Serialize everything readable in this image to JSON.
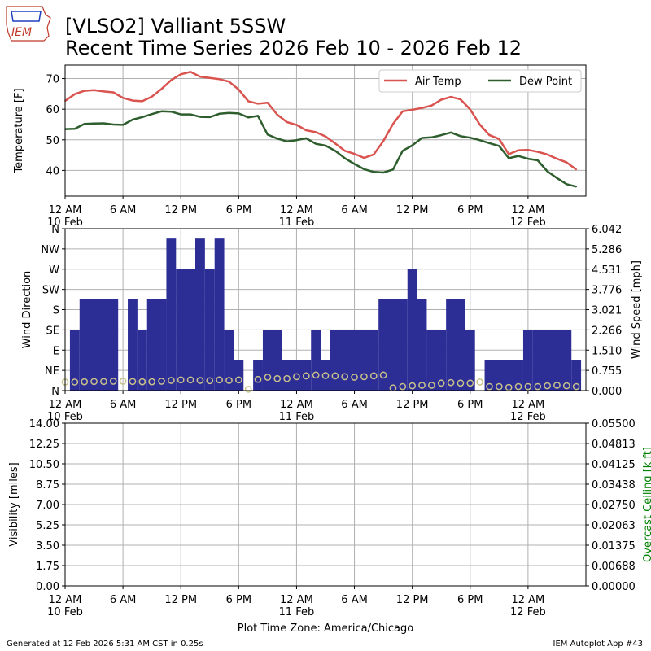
{
  "header": {
    "logo_text": "IEM",
    "title_line1": "[VLSO2] Valliant 5SSW",
    "title_line2": "Recent Time Series 2026 Feb 10 - 2026 Feb 12"
  },
  "footer": {
    "generated": "Generated at 12 Feb 2026 5:31 AM CST in 0.25s",
    "app": "IEM Autoplot App #43",
    "timezone_label": "Plot Time Zone: America/Chicago"
  },
  "colors": {
    "air_temp": "#d9534f",
    "dew_point": "#2e5e2e",
    "wind_bar": "#2d2d96",
    "wind_marker": "#c8c28a",
    "ceiling_axis": "#008000",
    "grid": "#b0b0b0"
  },
  "time_axis": {
    "start_hour": 0,
    "end_hour": 54,
    "ticks": [
      {
        "hour": 0,
        "label": "12 AM",
        "sub": "10 Feb"
      },
      {
        "hour": 6,
        "label": "6 AM",
        "sub": ""
      },
      {
        "hour": 12,
        "label": "12 PM",
        "sub": ""
      },
      {
        "hour": 18,
        "label": "6 PM",
        "sub": ""
      },
      {
        "hour": 24,
        "label": "12 AM",
        "sub": "11 Feb"
      },
      {
        "hour": 30,
        "label": "6 AM",
        "sub": ""
      },
      {
        "hour": 36,
        "label": "12 PM",
        "sub": ""
      },
      {
        "hour": 42,
        "label": "6 PM",
        "sub": ""
      },
      {
        "hour": 48,
        "label": "12 AM",
        "sub": "12 Feb"
      }
    ]
  },
  "chart_data": [
    {
      "type": "line",
      "ylabel": "Temperature [F]",
      "ylim": [
        31.6,
        74.4
      ],
      "yticks": [
        40,
        50,
        60,
        70
      ],
      "grid": true,
      "legend_position": "top-right",
      "x": [
        0,
        1,
        2,
        3,
        4,
        5,
        6,
        7,
        8,
        9,
        10,
        11,
        12,
        13,
        14,
        15,
        16,
        17,
        18,
        19,
        20,
        21,
        22,
        23,
        24,
        25,
        26,
        27,
        28,
        29,
        30,
        31,
        32,
        33,
        34,
        35,
        36,
        37,
        38,
        39,
        40,
        41,
        42,
        43,
        44,
        45,
        46,
        47,
        48,
        49,
        50,
        51,
        52,
        53
      ],
      "series": [
        {
          "name": "Air Temp",
          "color_key": "air_temp",
          "values": [
            62.7,
            64.9,
            66.0,
            66.2,
            65.8,
            65.5,
            63.7,
            62.8,
            62.6,
            64.1,
            66.6,
            69.5,
            71.4,
            72.2,
            70.6,
            70.2,
            69.8,
            69.0,
            66.4,
            62.6,
            61.8,
            62.1,
            58.2,
            55.8,
            54.9,
            53.1,
            52.5,
            51.1,
            48.8,
            46.4,
            45.4,
            44.1,
            45.2,
            49.6,
            55.2,
            59.3,
            59.8,
            60.4,
            61.2,
            63.1,
            64.0,
            63.2,
            59.9,
            55.0,
            51.5,
            50.3,
            45.3,
            46.6,
            46.7,
            46.1,
            45.2,
            43.8,
            42.6,
            40.3
          ]
        },
        {
          "name": "Dew Point",
          "color_key": "dew_point",
          "values": [
            53.5,
            53.6,
            55.2,
            55.3,
            55.4,
            55.0,
            54.9,
            56.6,
            57.4,
            58.4,
            59.3,
            59.2,
            58.3,
            58.3,
            57.5,
            57.4,
            58.5,
            58.8,
            58.6,
            57.3,
            57.8,
            51.7,
            50.4,
            49.5,
            49.9,
            50.5,
            48.7,
            48.1,
            46.4,
            44.0,
            42.1,
            40.4,
            39.5,
            39.3,
            40.3,
            46.4,
            48.2,
            50.6,
            50.8,
            51.5,
            52.4,
            51.2,
            50.7,
            49.9,
            48.9,
            48.0,
            44.0,
            44.7,
            43.8,
            43.3,
            39.7,
            37.5,
            35.5,
            34.7
          ]
        }
      ]
    },
    {
      "type": "bar",
      "ylabel": "Wind Direction",
      "y2label": "Wind Speed [mph]",
      "ylim": [
        0,
        360
      ],
      "direction_ticks": [
        {
          "deg": 0,
          "label": "N"
        },
        {
          "deg": 45,
          "label": "NE"
        },
        {
          "deg": 90,
          "label": "E"
        },
        {
          "deg": 135,
          "label": "SE"
        },
        {
          "deg": 180,
          "label": "S"
        },
        {
          "deg": 225,
          "label": "SW"
        },
        {
          "deg": 270,
          "label": "W"
        },
        {
          "deg": 315,
          "label": "NW"
        },
        {
          "deg": 360,
          "label": "N"
        }
      ],
      "speed_ticks": [
        "0.000",
        "0.755",
        "1.510",
        "2.266",
        "3.021",
        "3.776",
        "4.531",
        "5.286",
        "6.042"
      ],
      "speed_max": 6.042,
      "grid": true,
      "direction_bars": [
        {
          "x0": 0.5,
          "x1": 1.5,
          "deg": 135
        },
        {
          "x0": 1.5,
          "x1": 5.5,
          "deg": 203
        },
        {
          "x0": 6.5,
          "x1": 7.5,
          "deg": 203
        },
        {
          "x0": 7.5,
          "x1": 8.5,
          "deg": 135
        },
        {
          "x0": 8.5,
          "x1": 10.5,
          "deg": 203
        },
        {
          "x0": 10.5,
          "x1": 11.5,
          "deg": 338
        },
        {
          "x0": 11.5,
          "x1": 13.5,
          "deg": 270
        },
        {
          "x0": 13.5,
          "x1": 14.5,
          "deg": 338
        },
        {
          "x0": 14.5,
          "x1": 15.5,
          "deg": 270
        },
        {
          "x0": 15.5,
          "x1": 16.5,
          "deg": 338
        },
        {
          "x0": 16.5,
          "x1": 17.5,
          "deg": 135
        },
        {
          "x0": 17.5,
          "x1": 18.5,
          "deg": 68
        },
        {
          "x0": 19.5,
          "x1": 20.5,
          "deg": 68
        },
        {
          "x0": 20.5,
          "x1": 22.5,
          "deg": 135
        },
        {
          "x0": 22.5,
          "x1": 25.5,
          "deg": 68
        },
        {
          "x0": 25.5,
          "x1": 26.5,
          "deg": 135
        },
        {
          "x0": 26.5,
          "x1": 27.5,
          "deg": 68
        },
        {
          "x0": 27.5,
          "x1": 32.5,
          "deg": 135
        },
        {
          "x0": 32.5,
          "x1": 35.5,
          "deg": 203
        },
        {
          "x0": 35.5,
          "x1": 36.5,
          "deg": 270
        },
        {
          "x0": 36.5,
          "x1": 37.5,
          "deg": 203
        },
        {
          "x0": 37.5,
          "x1": 39.5,
          "deg": 135
        },
        {
          "x0": 39.5,
          "x1": 41.5,
          "deg": 203
        },
        {
          "x0": 41.5,
          "x1": 42.5,
          "deg": 135
        },
        {
          "x0": 43.5,
          "x1": 47.5,
          "deg": 68
        },
        {
          "x0": 47.5,
          "x1": 48.5,
          "deg": 135
        },
        {
          "x0": 48.5,
          "x1": 52.5,
          "deg": 135
        },
        {
          "x0": 52.5,
          "x1": 53.5,
          "deg": 68
        }
      ],
      "speed_markers": {
        "x": [
          0,
          1,
          2,
          3,
          4,
          5,
          6,
          7,
          8,
          9,
          10,
          11,
          12,
          13,
          14,
          15,
          16,
          17,
          18,
          19,
          20,
          21,
          22,
          23,
          24,
          25,
          26,
          27,
          28,
          29,
          30,
          31,
          32,
          33,
          34,
          35,
          36,
          37,
          38,
          39,
          40,
          41,
          42,
          43,
          44,
          45,
          46,
          47,
          48,
          49,
          50,
          51,
          52,
          53
        ],
        "values": [
          0.32,
          0.32,
          0.33,
          0.34,
          0.34,
          0.35,
          0.35,
          0.34,
          0.33,
          0.33,
          0.35,
          0.38,
          0.4,
          0.4,
          0.38,
          0.37,
          0.4,
          0.38,
          0.4,
          0.05,
          0.42,
          0.5,
          0.45,
          0.45,
          0.52,
          0.55,
          0.58,
          0.56,
          0.55,
          0.52,
          0.5,
          0.52,
          0.55,
          0.58,
          0.1,
          0.15,
          0.18,
          0.2,
          0.2,
          0.28,
          0.3,
          0.28,
          0.28,
          0.32,
          0.15,
          0.15,
          0.12,
          0.15,
          0.15,
          0.15,
          0.18,
          0.2,
          0.18,
          0.15
        ]
      }
    },
    {
      "type": "line",
      "ylabel": "Visibility [miles]",
      "y2label": "Overcast Ceiling [k ft]",
      "ylim": [
        0,
        14
      ],
      "yticks": [
        "0.00",
        "1.75",
        "3.50",
        "5.25",
        "7.00",
        "8.75",
        "10.50",
        "12.25",
        "14.00"
      ],
      "y2ticks": [
        "0.00000",
        "0.00688",
        "0.01375",
        "0.02063",
        "0.02750",
        "0.03438",
        "0.04125",
        "0.04813",
        "0.05500"
      ],
      "grid": true,
      "series": []
    }
  ]
}
